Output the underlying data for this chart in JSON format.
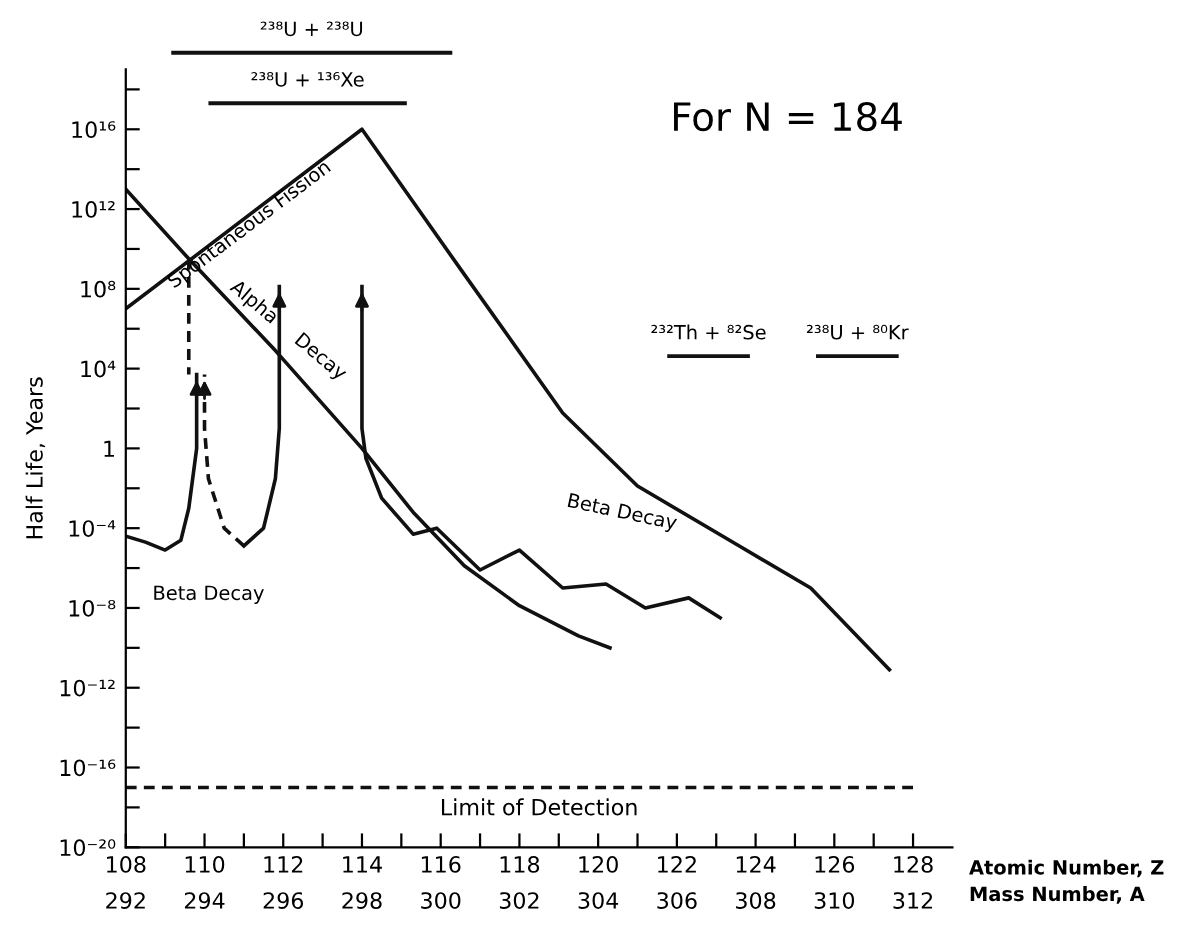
{
  "chart_data": {
    "type": "line",
    "ylabel": "Half Life, Years",
    "xlabel": "Atomic Number, Z",
    "x2label": "Mass Number, A",
    "log": "y",
    "grid": false,
    "marker": "none",
    "xlim": [
      108,
      129
    ],
    "xticks": [
      108,
      {
        "value": 109,
        "label": null
      },
      110,
      {
        "value": 111,
        "label": null
      },
      112,
      {
        "value": 113,
        "label": null
      },
      114,
      {
        "value": 115,
        "label": null
      },
      116,
      {
        "value": 117,
        "label": null
      },
      118,
      {
        "value": 119,
        "label": null
      },
      120,
      {
        "value": 121,
        "label": null
      },
      122,
      {
        "value": 123,
        "label": null
      },
      124,
      {
        "value": 125,
        "label": null
      },
      126,
      {
        "value": 127,
        "label": null
      },
      128
    ],
    "x2lim": [
      292,
      313
    ],
    "x2ticks": [
      292,
      294,
      296,
      298,
      300,
      302,
      304,
      306,
      308,
      310,
      312
    ],
    "ylim": [
      1e-20,
      1e+19
    ],
    "yticks": [
      {
        "value": 1e-20,
        "label": "10⁻²⁰"
      },
      {
        "value": 1e-18,
        "label": null
      },
      {
        "value": 1e-16,
        "label": "10⁻¹⁶"
      },
      {
        "value": 1e-14,
        "label": null
      },
      {
        "value": 1e-12,
        "label": "10⁻¹²"
      },
      {
        "value": 1e-10,
        "label": null
      },
      {
        "value": 1e-08,
        "label": "10⁻⁸"
      },
      {
        "value": 1e-06,
        "label": null
      },
      {
        "value": 0.0001,
        "label": "10⁻⁴"
      },
      {
        "value": 0.01,
        "label": null
      },
      1,
      {
        "value": 100.0,
        "label": null
      },
      {
        "value": 10000.0,
        "label": "10⁴"
      },
      {
        "value": 1000000.0,
        "label": null
      },
      {
        "value": 100000000.0,
        "label": "10⁸"
      },
      {
        "value": 10000000000.0,
        "label": null
      },
      {
        "value": 1000000000000.0,
        "label": "10¹²"
      },
      {
        "value": 100000000000000.0,
        "label": null
      },
      {
        "value": 1e+16,
        "label": "10¹⁶"
      },
      {
        "value": 1e+18,
        "label": null
      }
    ],
    "series": [
      {
        "color": "#111111",
        "line_style": "solid",
        "x": [
          108,
          114,
          116.5,
          119.1,
          121.0,
          123.5,
          125.4,
          127.4
        ],
        "values": [
          10000000.0,
          1e+16,
          1000000000.0,
          60,
          0.013,
          1.6e-05,
          1e-07,
          8e-12
        ]
      },
      {
        "color": "#111111",
        "line_style": "solid",
        "x": [
          108,
          109.6,
          111.8,
          114,
          115.3,
          116.6,
          118,
          119.5,
          120.3
        ],
        "values": [
          10000000000000.0,
          3200000000.0,
          80000.0,
          1,
          0.00063,
          1.3e-06,
          1.3e-08,
          4e-10,
          1e-10
        ]
      },
      {
        "color": "#111111",
        "line_style": "solid",
        "x": [
          108,
          108.5,
          109,
          109.4,
          109.6,
          109.8,
          109.8
        ],
        "values": [
          4e-05,
          2e-05,
          8e-06,
          2.5e-05,
          0.001,
          1,
          5000.0
        ]
      },
      {
        "color": "#111111",
        "line_style": "dashed",
        "x": [
          111,
          110.5,
          110.1,
          110,
          110
        ],
        "values": [
          1.3e-05,
          0.0001,
          0.03,
          10,
          5000.0
        ]
      },
      {
        "color": "#111111",
        "line_style": "solid",
        "x": [
          111,
          111.5,
          111.8,
          111.9,
          111.9
        ],
        "values": [
          1.3e-05,
          0.0001,
          0.03,
          10,
          130000000.0
        ]
      },
      {
        "color": "#111111",
        "line_style": "solid",
        "x": [
          123.1,
          122.3,
          121.2,
          120.2,
          119.1,
          118,
          117,
          115.9,
          115.3,
          114.5,
          114.1,
          114,
          114
        ],
        "values": [
          3.2e-09,
          3.2e-08,
          1e-08,
          1.6e-07,
          1e-07,
          8e-06,
          8e-07,
          0.0001,
          5e-05,
          0.0032,
          0.32,
          10,
          130000000.0
        ]
      },
      {
        "color": "#111111",
        "line_style": "dashed",
        "x": [
          109.6,
          109.6
        ],
        "values": [
          3200000000.0,
          5000.0
        ]
      }
    ],
    "ref_lines": [
      {
        "axis": "y",
        "value": 1e-17,
        "label": "Limit of Detection",
        "line_style": "dashed",
        "color": "#111111"
      }
    ],
    "annotations": [
      "For N = 184",
      "Spontaneous Fission",
      "Alpha",
      "Decay",
      "Beta Decay",
      "Beta Decay",
      "²³⁸U + ²³⁸U",
      "²³⁸U + ¹³⁶Xe",
      "²³²Th + ⁸²Se",
      "²³⁸U + ⁸⁰Kr"
    ]
  }
}
